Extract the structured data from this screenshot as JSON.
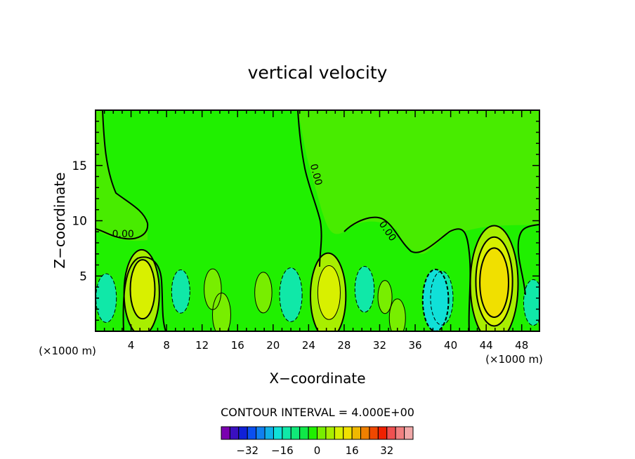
{
  "chart_data": {
    "type": "heatmap",
    "title": "vertical velocity",
    "xlabel": "X−coordinate",
    "ylabel": "Z−coordinate",
    "x_unit": "(×1000 m)",
    "x_unit_right": "(×1000 m)",
    "xlim": [
      0,
      50
    ],
    "ylim": [
      0,
      20
    ],
    "x_ticks": [
      4,
      8,
      12,
      16,
      20,
      24,
      28,
      32,
      36,
      40,
      44,
      48
    ],
    "y_ticks": [
      5,
      10,
      15
    ],
    "contour_interval_label": "CONTOUR INTERVAL = 4.000E+00",
    "contour_interval": 4,
    "zero_labels": [
      {
        "text": "0.00",
        "x": 3.1,
        "y": 8.5
      },
      {
        "text": "0.00",
        "x": 24.5,
        "y": 14.1
      },
      {
        "text": "0.00",
        "x": 32.6,
        "y": 8.9
      }
    ],
    "colorbar": {
      "tick_labels": [
        "−32",
        "−16",
        "0",
        "16",
        "32"
      ],
      "tick_values": [
        -32,
        -16,
        0,
        16,
        32
      ],
      "colors": [
        "#7a00b0",
        "#3a10c0",
        "#1020d8",
        "#0a4ff0",
        "#1080f0",
        "#10b0e8",
        "#10e0d8",
        "#10e8a8",
        "#10e878",
        "#10e848",
        "#20f000",
        "#78ee00",
        "#a8ee00",
        "#d8f000",
        "#f0e000",
        "#f0b800",
        "#f08000",
        "#f04800",
        "#f02000",
        "#f05050",
        "#f08080",
        "#f0a8a8"
      ]
    },
    "cells": [
      {
        "x": 5.2,
        "z": 3.5,
        "w": 17.3,
        "c": "#a8ee00"
      },
      {
        "x": 5.3,
        "z": 3.8,
        "w": 10.0,
        "c": "#d8f000"
      },
      {
        "x": 26.2,
        "z": 3.2,
        "w": 17.3,
        "c": "#a8ee00"
      },
      {
        "x": 26.3,
        "z": 3.5,
        "w": 8.6,
        "c": "#d8f000"
      },
      {
        "x": 44.9,
        "z": 4.3,
        "w": 25.7,
        "c": "#a8ee00"
      },
      {
        "x": 44.9,
        "z": 4.5,
        "w": 18.2,
        "c": "#d8f000"
      },
      {
        "x": 44.9,
        "z": 4.4,
        "w": 12.8,
        "c": "#f0e000"
      },
      {
        "x": 39.0,
        "z": 3.0,
        "w": -8.6,
        "c": "#10e8a8"
      },
      {
        "x": 38.3,
        "z": 2.8,
        "w": -10.8,
        "c": "#10e0d8"
      },
      {
        "x": 1.2,
        "z": 3.0,
        "w": -7.2,
        "c": "#10e8a8"
      },
      {
        "x": 9.6,
        "z": 3.6,
        "w": -5.7,
        "c": "#10e8a8"
      },
      {
        "x": 22.0,
        "z": 3.3,
        "w": -8.6,
        "c": "#10e8a8"
      },
      {
        "x": 30.3,
        "z": 3.8,
        "w": -6.4,
        "c": "#10e8a8"
      },
      {
        "x": 49.3,
        "z": 2.6,
        "w": -6.4,
        "c": "#10e8a8"
      },
      {
        "x": 13.2,
        "z": 3.8,
        "w": 5.0,
        "c": "#78ee00"
      },
      {
        "x": 14.2,
        "z": 1.5,
        "w": 5.7,
        "c": "#78ee00"
      },
      {
        "x": 18.9,
        "z": 3.5,
        "w": 5.0,
        "c": "#78ee00"
      },
      {
        "x": 34.0,
        "z": 1.2,
        "w": 4.3,
        "c": "#78ee00"
      },
      {
        "x": 32.6,
        "z": 3.1,
        "w": 2.9,
        "c": "#78ee00"
      }
    ]
  }
}
